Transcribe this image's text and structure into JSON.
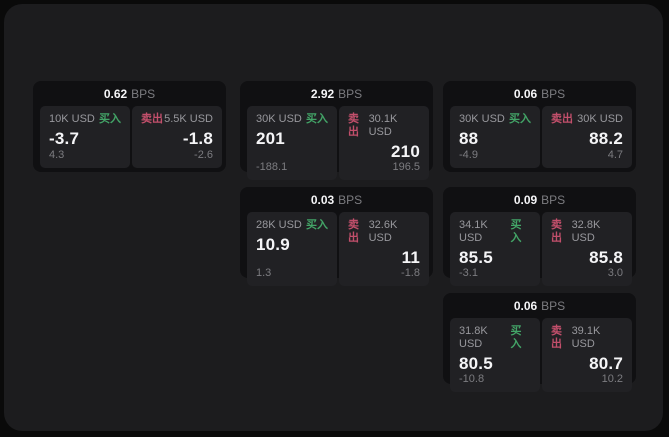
{
  "labels": {
    "bps_unit": "BPS",
    "buy": "买入",
    "sell": "卖出"
  },
  "colors": {
    "buy_green": "#43a467",
    "sell_red": "#c24f6b",
    "page_bg": "#1c1c1e",
    "card_bg": "#101012",
    "panel_bg": "#212124",
    "text_bright": "#f5f5f7",
    "text_gray": "#98989d",
    "text_dim": "#7c7c80"
  },
  "cards": [
    {
      "bps": "0.62",
      "buy": {
        "amount": "10K USD",
        "price": "-3.7",
        "delta": "4.3"
      },
      "sell": {
        "amount": "5.5K USD",
        "price": "-1.8",
        "delta": "-2.6"
      }
    },
    {
      "bps": "2.92",
      "buy": {
        "amount": "30K USD",
        "price": "201",
        "delta": "-188.1"
      },
      "sell": {
        "amount": "30.1K USD",
        "price": "210",
        "delta": "196.5"
      }
    },
    {
      "bps": "0.06",
      "buy": {
        "amount": "30K USD",
        "price": "88",
        "delta": "-4.9"
      },
      "sell": {
        "amount": "30K USD",
        "price": "88.2",
        "delta": "4.7"
      }
    },
    {
      "bps": "0.03",
      "buy": {
        "amount": "28K USD",
        "price": "10.9",
        "delta": "1.3"
      },
      "sell": {
        "amount": "32.6K USD",
        "price": "11",
        "delta": "-1.8"
      }
    },
    {
      "bps": "0.09",
      "buy": {
        "amount": "34.1K USD",
        "price": "85.5",
        "delta": "-3.1"
      },
      "sell": {
        "amount": "32.8K USD",
        "price": "85.8",
        "delta": "3.0"
      }
    },
    {
      "bps": "0.06",
      "buy": {
        "amount": "31.8K USD",
        "price": "80.5",
        "delta": "-10.8"
      },
      "sell": {
        "amount": "39.1K USD",
        "price": "80.7",
        "delta": "10.2"
      }
    }
  ]
}
